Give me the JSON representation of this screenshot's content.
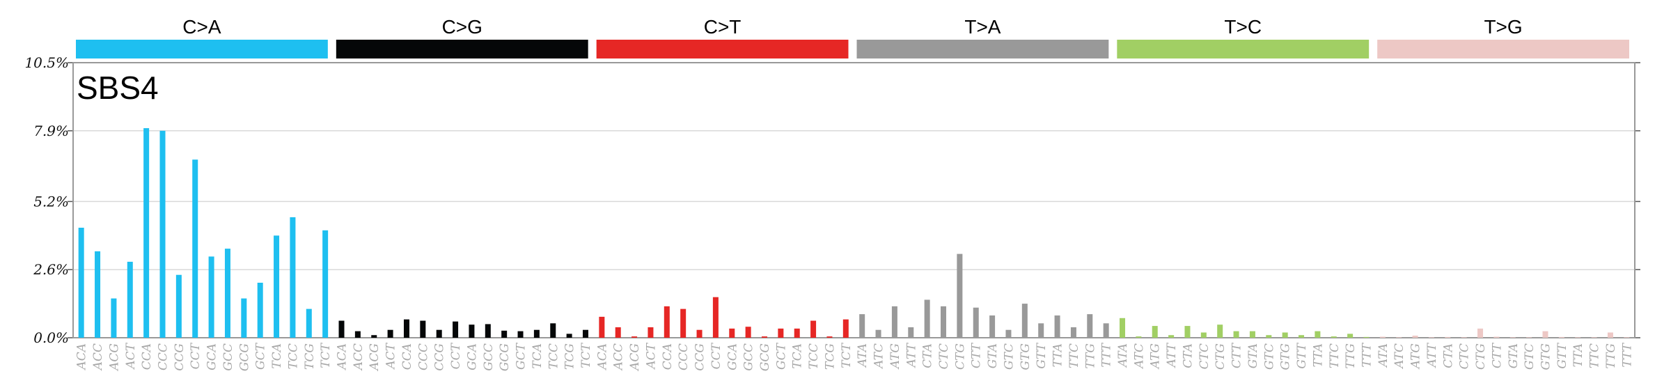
{
  "chart_data": {
    "type": "bar",
    "title": "SBS4",
    "ylim": [
      0,
      10.5
    ],
    "yticks": [
      "0.0%",
      "2.6%",
      "5.2%",
      "7.9%",
      "10.5%"
    ],
    "ytick_values": [
      0,
      2.6,
      5.2,
      7.9,
      10.5
    ],
    "grid": true,
    "groups": [
      {
        "name": "C>A",
        "color": "#1EBFF0"
      },
      {
        "name": "C>G",
        "color": "#050708"
      },
      {
        "name": "C>T",
        "color": "#E62725"
      },
      {
        "name": "T>A",
        "color": "#999999"
      },
      {
        "name": "T>C",
        "color": "#A1CF64"
      },
      {
        "name": "T>G",
        "color": "#EDC8C5"
      }
    ],
    "categories": [
      "ACA",
      "ACC",
      "ACG",
      "ACT",
      "CCA",
      "CCC",
      "CCG",
      "CCT",
      "GCA",
      "GCC",
      "GCG",
      "GCT",
      "TCA",
      "TCC",
      "TCG",
      "TCT",
      "ACA",
      "ACC",
      "ACG",
      "ACT",
      "CCA",
      "CCC",
      "CCG",
      "CCT",
      "GCA",
      "GCC",
      "GCG",
      "GCT",
      "TCA",
      "TCC",
      "TCG",
      "TCT",
      "ACA",
      "ACC",
      "ACG",
      "ACT",
      "CCA",
      "CCC",
      "CCG",
      "CCT",
      "GCA",
      "GCC",
      "GCG",
      "GCT",
      "TCA",
      "TCC",
      "TCG",
      "TCT",
      "ATA",
      "ATC",
      "ATG",
      "ATT",
      "CTA",
      "CTC",
      "CTG",
      "CTT",
      "GTA",
      "GTC",
      "GTG",
      "GTT",
      "TTA",
      "TTC",
      "TTG",
      "TTT",
      "ATA",
      "ATC",
      "ATG",
      "ATT",
      "CTA",
      "CTC",
      "CTG",
      "CTT",
      "GTA",
      "GTC",
      "GTG",
      "GTT",
      "TTA",
      "TTC",
      "TTG",
      "TTT",
      "ATA",
      "ATC",
      "ATG",
      "ATT",
      "CTA",
      "CTC",
      "CTG",
      "CTT",
      "GTA",
      "GTC",
      "GTG",
      "GTT",
      "TTA",
      "TTC",
      "TTG",
      "TTT"
    ],
    "values": [
      4.2,
      3.3,
      1.5,
      2.9,
      8.0,
      7.9,
      2.4,
      6.8,
      3.1,
      3.4,
      1.5,
      2.1,
      3.9,
      4.6,
      1.1,
      4.1,
      0.65,
      0.25,
      0.1,
      0.3,
      0.7,
      0.65,
      0.3,
      0.62,
      0.5,
      0.52,
      0.27,
      0.25,
      0.3,
      0.55,
      0.15,
      0.3,
      0.8,
      0.4,
      0.05,
      0.4,
      1.2,
      1.1,
      0.3,
      1.55,
      0.35,
      0.42,
      0.05,
      0.35,
      0.35,
      0.65,
      0.05,
      0.7,
      0.9,
      0.3,
      1.2,
      0.4,
      1.45,
      1.2,
      3.2,
      1.15,
      0.85,
      0.3,
      1.3,
      0.55,
      0.85,
      0.4,
      0.9,
      0.55,
      0.75,
      0.05,
      0.45,
      0.1,
      0.45,
      0.2,
      0.5,
      0.25,
      0.25,
      0.1,
      0.2,
      0.1,
      0.25,
      0.05,
      0.15,
      0.03,
      0.04,
      0.02,
      0.08,
      0.02,
      0.03,
      0.02,
      0.35,
      0.04,
      0.02,
      0.02,
      0.25,
      0.03,
      0.02,
      0.02,
      0.2,
      0.02
    ]
  }
}
